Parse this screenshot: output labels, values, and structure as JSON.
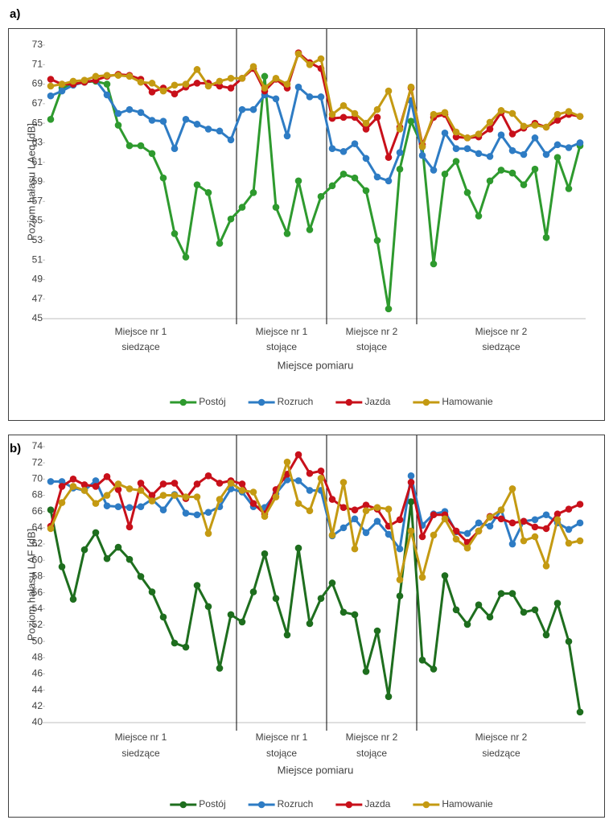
{
  "chart_data": [
    {
      "type": "line",
      "panel_label": "a)",
      "ylabel": "Poziom hałasu LAeq [dB]",
      "xlabel": "Miejsce pomiaru",
      "ylim": [
        45,
        73
      ],
      "yticks": [
        45,
        47,
        49,
        51,
        53,
        55,
        57,
        59,
        61,
        63,
        65,
        67,
        69,
        71,
        73
      ],
      "categories": [
        null,
        null,
        null,
        null,
        null,
        null,
        null,
        null,
        null,
        null,
        null,
        null,
        null,
        null,
        null,
        null,
        null,
        null,
        null,
        null,
        null,
        null,
        null,
        null,
        null,
        null,
        null,
        null,
        null,
        null,
        null,
        null,
        null,
        null,
        null,
        null,
        null,
        null,
        null,
        null,
        null,
        null,
        null,
        null,
        null,
        null,
        null,
        null
      ],
      "groups": [
        {
          "label": [
            "Miejsce nr 1",
            "siedzące"
          ],
          "count": 17
        },
        {
          "label": [
            "Miejsce nr 1",
            "stojące"
          ],
          "count": 8
        },
        {
          "label": [
            "Miejsce nr 2",
            "stojące"
          ],
          "count": 8
        },
        {
          "label": [
            "Miejsce nr 2",
            "siedzące"
          ],
          "count": 15
        }
      ],
      "series": [
        {
          "name": "Postój",
          "color": "#2e9a2e",
          "values": [
            65.4,
            68.6,
            69.0,
            69.2,
            69.3,
            69.0,
            64.8,
            62.7,
            62.7,
            61.9,
            59.4,
            53.7,
            51.3,
            58.7,
            57.9,
            52.7,
            55.2,
            56.4,
            57.9,
            69.8,
            56.4,
            53.7,
            59.1,
            54.1,
            57.5,
            58.6,
            59.8,
            59.4,
            58.1,
            53.0,
            46.0,
            60.3,
            65.2,
            62.6,
            50.6,
            59.8,
            61.1,
            57.9,
            55.5,
            59.1,
            60.2,
            59.9,
            58.7,
            60.3,
            53.3,
            61.5,
            58.3,
            62.7
          ]
        },
        {
          "name": "Rozruch",
          "color": "#2e7cc4",
          "values": [
            67.8,
            68.3,
            68.9,
            69.2,
            69.4,
            67.9,
            66.0,
            66.4,
            66.1,
            65.3,
            65.2,
            62.4,
            65.4,
            64.9,
            64.4,
            64.2,
            63.3,
            66.4,
            66.4,
            67.9,
            67.5,
            63.7,
            68.7,
            67.7,
            67.7,
            62.4,
            62.1,
            62.9,
            61.4,
            59.5,
            59.1,
            62.0,
            67.3,
            61.7,
            60.2,
            64.0,
            62.4,
            62.4,
            61.9,
            61.6,
            63.8,
            62.2,
            61.8,
            63.5,
            61.8,
            62.8,
            62.5,
            63.0
          ]
        },
        {
          "name": "Jazda",
          "color": "#c8101a",
          "values": [
            69.5,
            69.0,
            69.0,
            69.2,
            69.4,
            69.8,
            70.0,
            69.9,
            69.5,
            68.2,
            68.6,
            68.0,
            68.7,
            69.1,
            69.1,
            68.8,
            68.6,
            69.6,
            70.6,
            68.3,
            69.5,
            68.6,
            72.2,
            71.2,
            70.6,
            65.5,
            65.6,
            65.6,
            64.4,
            65.6,
            61.5,
            64.6,
            68.6,
            62.8,
            65.6,
            65.9,
            63.6,
            63.5,
            63.6,
            64.4,
            66.1,
            63.9,
            64.5,
            65.0,
            64.6,
            65.3,
            65.9,
            65.7
          ]
        },
        {
          "name": "Hamowanie",
          "color": "#c49a12",
          "values": [
            68.8,
            69.0,
            69.3,
            69.4,
            69.8,
            69.9,
            69.9,
            69.8,
            69.2,
            69.1,
            68.3,
            68.9,
            69.0,
            70.5,
            68.8,
            69.3,
            69.6,
            69.6,
            70.8,
            68.6,
            69.6,
            69.0,
            72.1,
            71.0,
            71.6,
            65.9,
            66.8,
            66.0,
            65.0,
            66.4,
            68.3,
            64.4,
            68.7,
            62.6,
            65.9,
            66.1,
            64.1,
            63.5,
            63.9,
            65.1,
            66.3,
            66.0,
            64.7,
            64.8,
            64.6,
            65.9,
            66.2,
            65.7
          ]
        }
      ]
    },
    {
      "type": "line",
      "panel_label": "b)",
      "ylabel": "Poziom hałasu LAF [dB]",
      "xlabel": "Miejsce pomiaru",
      "ylim": [
        40,
        74
      ],
      "yticks": [
        40,
        42,
        44,
        46,
        48,
        50,
        52,
        54,
        56,
        58,
        60,
        62,
        64,
        66,
        68,
        70,
        72,
        74
      ],
      "categories": [
        null,
        null,
        null,
        null,
        null,
        null,
        null,
        null,
        null,
        null,
        null,
        null,
        null,
        null,
        null,
        null,
        null,
        null,
        null,
        null,
        null,
        null,
        null,
        null,
        null,
        null,
        null,
        null,
        null,
        null,
        null,
        null,
        null,
        null,
        null,
        null,
        null,
        null,
        null,
        null,
        null,
        null,
        null,
        null,
        null,
        null,
        null,
        null
      ],
      "groups": [
        {
          "label": [
            "Miejsce nr 1",
            "siedzące"
          ],
          "count": 17
        },
        {
          "label": [
            "Miejsce nr 1",
            "stojące"
          ],
          "count": 8
        },
        {
          "label": [
            "Miejsce nr 2",
            "stojące"
          ],
          "count": 8
        },
        {
          "label": [
            "Miejsce nr 2",
            "siedzące"
          ],
          "count": 15
        }
      ],
      "series": [
        {
          "name": "Postój",
          "color": "#1e6e1e",
          "values": [
            66.2,
            59.2,
            55.2,
            61.3,
            63.4,
            60.2,
            61.6,
            60.1,
            58.0,
            56.1,
            53.0,
            49.8,
            49.3,
            56.9,
            54.3,
            46.7,
            53.3,
            52.4,
            56.1,
            60.8,
            55.3,
            50.8,
            61.5,
            52.2,
            55.3,
            57.2,
            53.6,
            53.3,
            46.3,
            51.3,
            43.2,
            55.6,
            67.2,
            47.7,
            46.6,
            58.1,
            53.9,
            52.1,
            54.5,
            53.0,
            55.9,
            55.9,
            53.6,
            53.9,
            50.8,
            54.7,
            50.0,
            41.3
          ]
        },
        {
          "name": "Rozruch",
          "color": "#2e7cc4",
          "values": [
            69.7,
            69.7,
            68.9,
            68.6,
            69.8,
            66.7,
            66.6,
            66.5,
            66.6,
            67.5,
            66.2,
            68.1,
            65.8,
            65.6,
            65.9,
            66.6,
            68.8,
            68.4,
            66.6,
            66.5,
            68.2,
            69.9,
            69.8,
            68.6,
            68.6,
            63.0,
            64.0,
            65.1,
            63.4,
            64.8,
            63.2,
            61.4,
            70.4,
            64.3,
            65.7,
            66.0,
            63.5,
            63.3,
            64.6,
            64.2,
            66.2,
            62.0,
            64.8,
            65.0,
            65.6,
            64.6,
            63.8,
            64.6
          ]
        },
        {
          "name": "Jazda",
          "color": "#c8101a",
          "values": [
            64.2,
            69.1,
            70.0,
            69.3,
            69.1,
            70.3,
            68.7,
            64.1,
            69.5,
            68.0,
            69.4,
            69.5,
            67.6,
            69.4,
            70.4,
            69.5,
            69.8,
            69.4,
            67.0,
            65.7,
            68.7,
            70.6,
            73.0,
            70.7,
            71.0,
            67.5,
            66.5,
            66.2,
            66.8,
            66.3,
            64.2,
            65.0,
            69.6,
            62.9,
            65.6,
            65.6,
            63.6,
            62.2,
            63.6,
            65.4,
            65.1,
            64.6,
            64.8,
            64.1,
            63.9,
            65.7,
            66.3,
            66.9
          ]
        },
        {
          "name": "Hamowanie",
          "color": "#c49a12",
          "values": [
            63.9,
            67.1,
            69.1,
            68.6,
            67.0,
            68.0,
            69.4,
            68.8,
            68.6,
            67.3,
            68.0,
            68.0,
            67.8,
            67.8,
            63.3,
            67.5,
            69.5,
            68.6,
            68.4,
            65.4,
            67.8,
            72.1,
            67.0,
            66.1,
            70.1,
            63.1,
            69.6,
            61.4,
            66.1,
            66.5,
            66.3,
            57.6,
            63.6,
            57.9,
            63.1,
            65.1,
            62.6,
            61.5,
            63.6,
            65.3,
            66.2,
            68.8,
            62.4,
            62.9,
            59.3,
            65.0,
            62.1,
            62.4
          ]
        }
      ]
    }
  ]
}
